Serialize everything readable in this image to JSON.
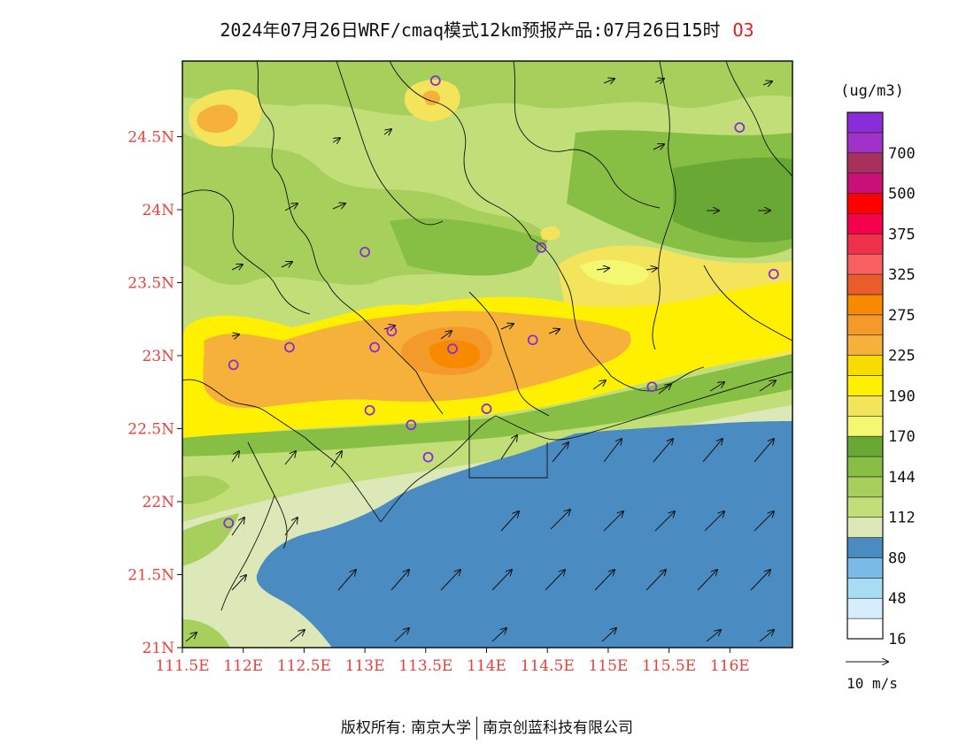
{
  "title": {
    "text": "2024年07月26日WRF/cmaq模式12km预报产品:07月26日15时",
    "species": "O3"
  },
  "colors": {
    "axis_label": "#e8413c",
    "sea": "#4a8cc2",
    "land_low": "#dce8b8"
  },
  "lat_axis": {
    "labels": [
      "24.5N",
      "24N",
      "23.5N",
      "23N",
      "22.5N",
      "22N",
      "21.5N",
      "21N"
    ]
  },
  "lon_axis": {
    "labels": [
      "111.5E",
      "112E",
      "112.5E",
      "113E",
      "113.5E",
      "114E",
      "114.5E",
      "115E",
      "115.5E",
      "116E"
    ]
  },
  "legend": {
    "unit": "(ug/m3)",
    "bins": [
      {
        "color": "#ffffff",
        "label": "16"
      },
      {
        "color": "#d6eefb",
        "label": ""
      },
      {
        "color": "#a8dcf3",
        "label": "48"
      },
      {
        "color": "#7abae6",
        "label": ""
      },
      {
        "color": "#4a8cc2",
        "label": "80"
      },
      {
        "color": "#dce8b8",
        "label": ""
      },
      {
        "color": "#c2de78",
        "label": "112"
      },
      {
        "color": "#a6cf5c",
        "label": ""
      },
      {
        "color": "#86bf44",
        "label": "144"
      },
      {
        "color": "#6aa836",
        "label": ""
      },
      {
        "color": "#f4f870",
        "label": "170"
      },
      {
        "color": "#f4e45c",
        "label": ""
      },
      {
        "color": "#fff000",
        "label": "190"
      },
      {
        "color": "#f8dc00",
        "label": ""
      },
      {
        "color": "#f6b13a",
        "label": "225"
      },
      {
        "color": "#f49a2a",
        "label": ""
      },
      {
        "color": "#f88a00",
        "label": "275"
      },
      {
        "color": "#ea5c2c",
        "label": ""
      },
      {
        "color": "#f86060",
        "label": "325"
      },
      {
        "color": "#f0304a",
        "label": ""
      },
      {
        "color": "#f5004a",
        "label": "375"
      },
      {
        "color": "#ff0000",
        "label": ""
      },
      {
        "color": "#c81078",
        "label": "500"
      },
      {
        "color": "#a8305c",
        "label": ""
      },
      {
        "color": "#a032c8",
        "label": "700"
      },
      {
        "color": "#8a2cd8",
        "label": ""
      }
    ]
  },
  "wind_reference": "10 m/s",
  "footer": {
    "copyright": "版权所有: 南京大学",
    "company": "南京创蓝科技有限公司"
  },
  "stations": [
    [
      113.58,
      24.87
    ],
    [
      116.08,
      24.55
    ],
    [
      113.0,
      23.7
    ],
    [
      114.45,
      23.73
    ],
    [
      116.36,
      23.55
    ],
    [
      111.92,
      22.93
    ],
    [
      112.38,
      23.05
    ],
    [
      113.08,
      23.05
    ],
    [
      113.22,
      23.16
    ],
    [
      113.72,
      23.04
    ],
    [
      114.38,
      23.1
    ],
    [
      113.04,
      22.62
    ],
    [
      113.38,
      22.52
    ],
    [
      113.52,
      22.3
    ],
    [
      114.0,
      22.63
    ],
    [
      115.36,
      22.78
    ],
    [
      111.88,
      21.85
    ]
  ]
}
